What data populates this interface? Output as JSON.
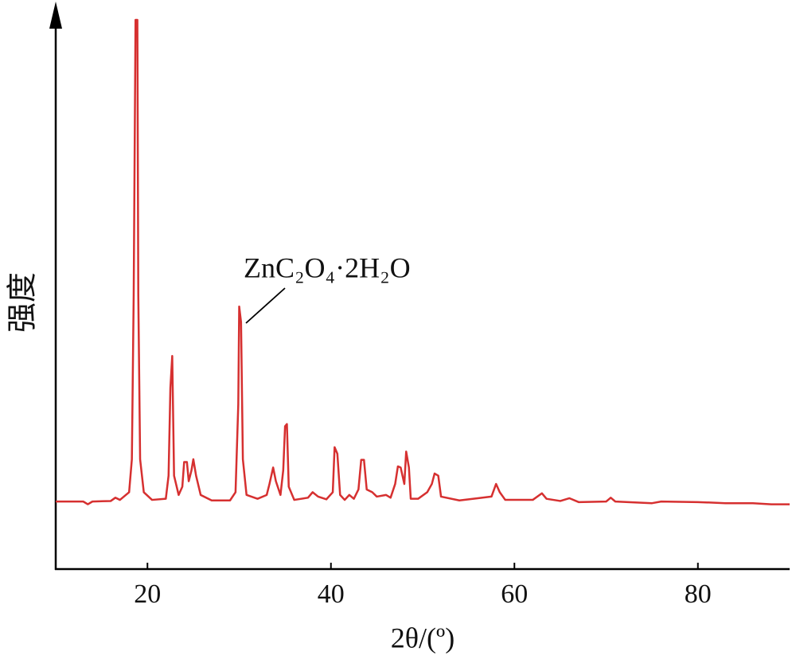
{
  "chart_data": {
    "type": "line",
    "x_label": "2θ/(º)",
    "y_label": "强度",
    "annotation": "ZnC₂O₄·2H₂O",
    "xlim": [
      10,
      90
    ],
    "xticks": [
      20,
      40,
      60,
      80
    ],
    "ylim": [
      0,
      100
    ],
    "series": [
      {
        "color": "#d63030",
        "x": [
          10,
          13,
          13.5,
          14,
          16,
          16.5,
          17,
          18,
          18.3,
          18.5,
          18.7,
          18.9,
          19.0,
          19.2,
          19.6,
          20.5,
          22,
          22.3,
          22.5,
          22.7,
          22.9,
          23.4,
          23.8,
          24.0,
          24.3,
          24.5,
          24.8,
          25.0,
          25.3,
          25.8,
          27,
          29,
          29.6,
          29.9,
          30.0,
          30.2,
          30.4,
          30.8,
          32,
          33,
          33.3,
          33.7,
          34.0,
          34.5,
          34.8,
          35.0,
          35.2,
          35.4,
          36,
          37.5,
          38,
          38.6,
          39.5,
          40.2,
          40.4,
          40.7,
          41,
          41.5,
          42,
          42.5,
          43,
          43.3,
          43.6,
          43.9,
          44.5,
          45,
          46,
          46.5,
          47,
          47.3,
          47.6,
          48,
          48.2,
          48.5,
          48.7,
          49.5,
          50.5,
          51,
          51.3,
          51.7,
          52,
          54,
          56,
          57.5,
          58,
          58.4,
          59,
          62,
          63,
          63.5,
          65,
          66,
          67,
          70,
          70.5,
          71,
          75,
          76,
          80,
          83,
          86,
          88,
          90
        ],
        "values": [
          12.3,
          12.3,
          11.8,
          12.3,
          12.4,
          13,
          12.6,
          14,
          20,
          50,
          100,
          100,
          50,
          20,
          14,
          12.6,
          12.8,
          17,
          33,
          38.8,
          17,
          13.5,
          15,
          19.5,
          19.5,
          16,
          18,
          20,
          17,
          13.5,
          12.5,
          12.5,
          14,
          30,
          47.8,
          45,
          20,
          13.5,
          12.8,
          13.5,
          15.5,
          18.5,
          16,
          13.5,
          18,
          26,
          26.4,
          15,
          12.6,
          13,
          14,
          13.2,
          12.7,
          14,
          22.2,
          21,
          13.5,
          12.6,
          13.5,
          12.8,
          14.5,
          19.9,
          19.9,
          14.5,
          14,
          13.2,
          13.5,
          13,
          15.5,
          18.7,
          18.5,
          15.5,
          21.4,
          18.5,
          12.8,
          12.8,
          14,
          15.5,
          17.4,
          17,
          13.2,
          12.5,
          12.9,
          13.2,
          15.5,
          14,
          12.6,
          12.6,
          13.8,
          12.8,
          12.4,
          12.9,
          12.2,
          12.3,
          13,
          12.3,
          12,
          12.3,
          12.2,
          12,
          12,
          11.8,
          11.8
        ]
      }
    ]
  }
}
